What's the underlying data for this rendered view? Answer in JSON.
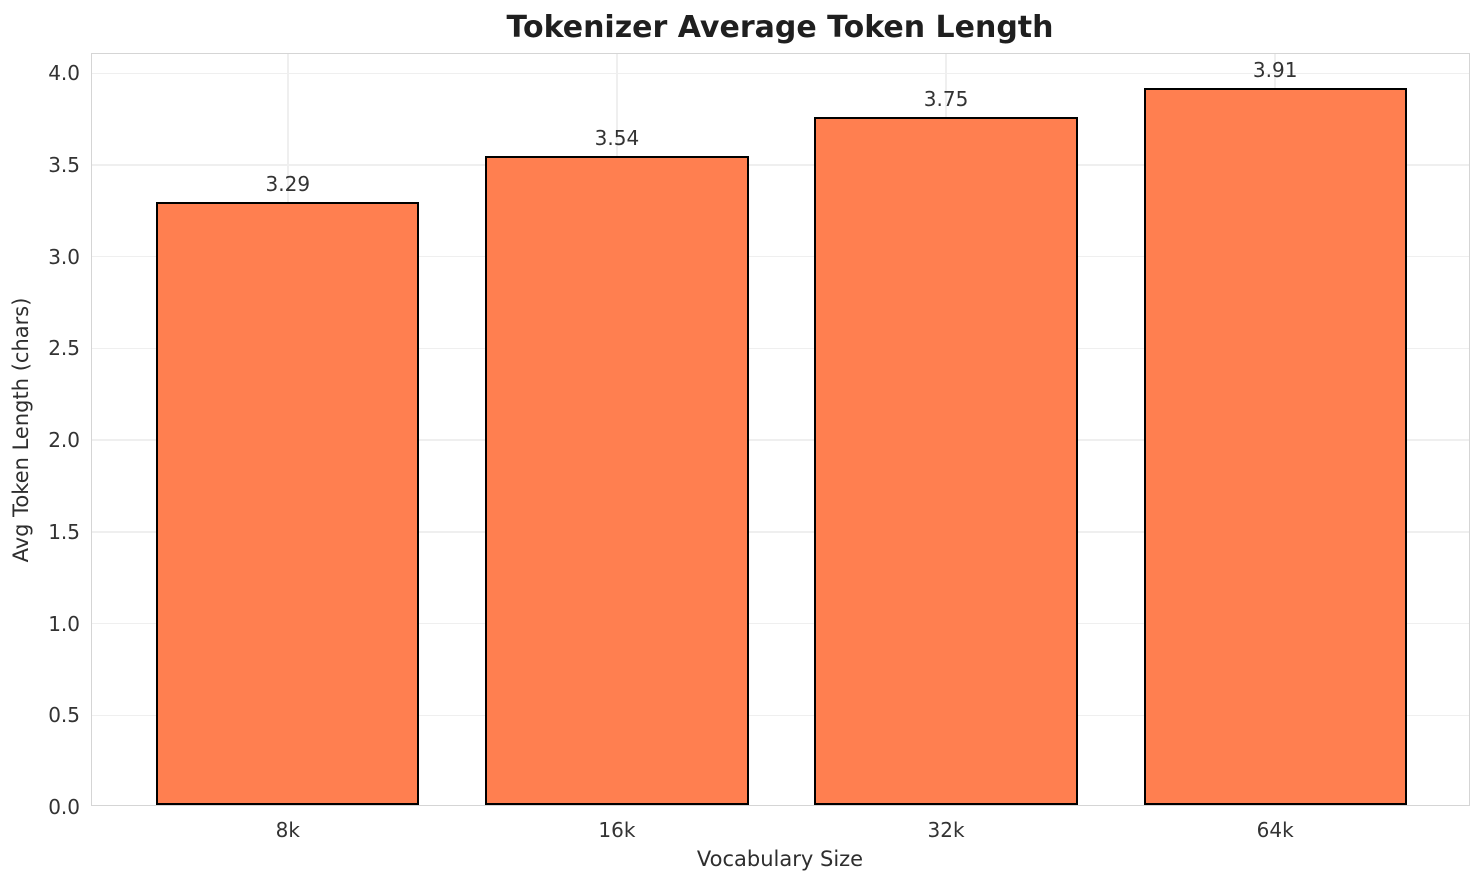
{
  "chart_data": {
    "type": "bar",
    "title": "Tokenizer Average Token Length",
    "xlabel": "Vocabulary Size",
    "ylabel": "Avg Token Length (chars)",
    "categories": [
      "8k",
      "16k",
      "32k",
      "64k"
    ],
    "values": [
      3.29,
      3.54,
      3.75,
      3.91
    ],
    "value_labels": [
      "3.29",
      "3.54",
      "3.75",
      "3.91"
    ],
    "ylim": [
      0,
      4.105
    ],
    "yticks": [
      0.0,
      0.5,
      1.0,
      1.5,
      2.0,
      2.5,
      3.0,
      3.5,
      4.0
    ],
    "ytick_labels": [
      "0.0",
      "0.5",
      "1.0",
      "1.5",
      "2.0",
      "2.5",
      "3.0",
      "3.5",
      "4.0"
    ],
    "grid": "both",
    "legend": "none",
    "bar_width_fraction": 0.8,
    "x_margin_units": 0.595,
    "colors": {
      "bar_fill": "#FF7F50",
      "bar_edge": "#000000",
      "gridline": "#efefef",
      "spine": "#d5d5d5",
      "title_text": "#1f1f1f",
      "tick_text": "#333333",
      "axis_label_text": "#2e2e2e",
      "background": "#ffffff"
    }
  }
}
